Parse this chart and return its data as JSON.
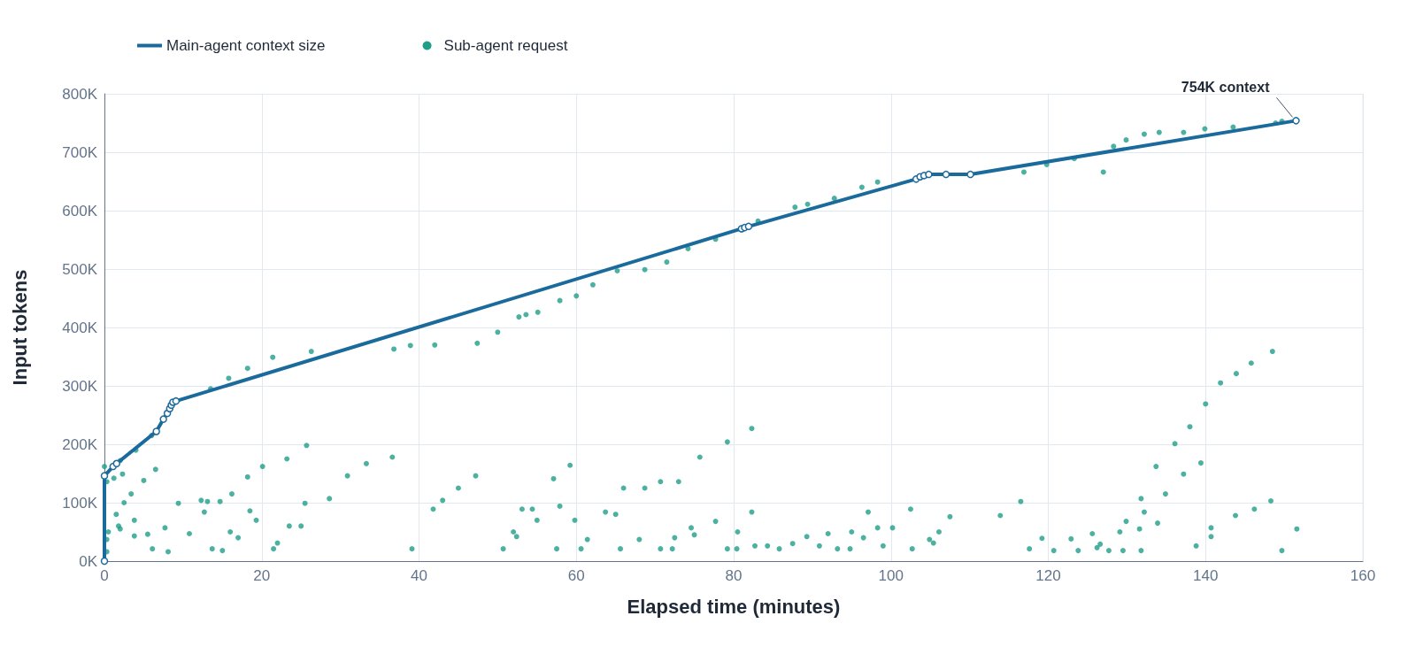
{
  "chart_data": {
    "type": "line",
    "xlabel": "Elapsed time (minutes)",
    "ylabel": "Input tokens",
    "xlim": [
      0,
      160
    ],
    "xticks": [
      0,
      20,
      40,
      60,
      80,
      100,
      120,
      140,
      160
    ],
    "ylim": [
      0,
      800000
    ],
    "yticks": [
      {
        "value": 0,
        "label": "0K"
      },
      {
        "value": 100000,
        "label": "100K"
      },
      {
        "value": 200000,
        "label": "200K"
      },
      {
        "value": 300000,
        "label": "300K"
      },
      {
        "value": 400000,
        "label": "400K"
      },
      {
        "value": 500000,
        "label": "500K"
      },
      {
        "value": 600000,
        "label": "600K"
      },
      {
        "value": 700000,
        "label": "700K"
      },
      {
        "value": 800000,
        "label": "800K"
      }
    ],
    "grid": true,
    "legend": "top left",
    "marker": "circle",
    "line_style": "solid",
    "annotations": [
      {
        "text": "754K context",
        "x": 151.5,
        "y": 754000
      }
    ],
    "series": [
      {
        "name": "Main-agent context size",
        "color": "#1b6a9c",
        "x": [
          0,
          0,
          1.1,
          1.55,
          6.6,
          7.5,
          8.0,
          8.3,
          8.5,
          8.7,
          9.1,
          81.0,
          81.4,
          81.9,
          103.2,
          103.7,
          104.2,
          104.8,
          107.0,
          110.1,
          151.5
        ],
        "values": [
          0,
          146000,
          162000,
          167000,
          222000,
          243000,
          253000,
          261000,
          267000,
          272000,
          274000,
          569000,
          571000,
          573000,
          654000,
          658000,
          660000,
          662000,
          662000,
          662000,
          754000
        ]
      },
      {
        "name": "Sub-agent request",
        "type": "scatter",
        "color": "#1f9e89",
        "x": [
          0,
          2,
          4,
          6,
          13.5,
          15.8,
          18.2,
          21.4,
          26.3,
          36.8,
          38.9,
          42,
          47.4,
          50,
          52.7,
          53.6,
          55.1,
          57.9,
          60,
          62.1,
          65.2,
          68.7,
          71.5,
          74.2,
          77.7,
          83.1,
          87.8,
          89.4,
          92.8,
          96.3,
          98.3,
          116.9,
          119.8,
          123.3,
          127,
          128.3,
          129.9,
          132.2,
          134.1,
          137.2,
          139.9,
          143.5,
          148.9,
          149.7,
          0.3,
          1.2,
          2.3,
          0.3,
          1.8,
          3.4,
          5,
          6.5,
          0.3,
          2,
          3.8,
          0.5,
          1.5,
          2.5,
          3.8,
          5.5,
          6.1,
          7.7,
          9.4,
          8.1,
          10.8,
          12.7,
          12.3,
          13.1,
          14.7,
          16.2,
          18.2,
          20.1,
          23.2,
          25.7,
          13.7,
          16,
          18.5,
          15,
          17,
          19.3,
          21.5,
          23.5,
          25.5,
          22,
          25,
          28.6,
          30.9,
          33.3,
          36.6,
          39.1,
          41.8,
          43,
          45,
          47.2,
          50.7,
          52,
          53.1,
          54.4,
          57.1,
          59.2,
          52.4,
          55,
          57.9,
          57.5,
          59.8,
          60.6,
          63.7,
          66,
          61.4,
          65,
          68.7,
          65.6,
          68,
          70.7,
          72.5,
          74.6,
          73,
          75.7,
          79.2,
          82.3,
          70.7,
          72.2,
          75,
          77.7,
          79.2,
          80.5,
          82.3,
          80.4,
          82.7,
          84.3,
          85.8,
          87.5,
          89.3,
          90.9,
          92,
          93.2,
          95,
          97.1,
          94.8,
          96.5,
          98.3,
          99,
          100.2,
          102.5,
          102.7,
          104.9,
          106.1,
          105.4,
          107.5,
          113.9,
          116.5,
          117.6,
          119.2,
          120.7,
          122.9,
          123.8,
          125.6,
          126.2,
          126.6,
          127.7,
          129.1,
          129.9,
          131.8,
          133.7,
          136.1,
          138,
          140,
          141.9,
          143.9,
          145.8,
          148.5,
          129.5,
          132.2,
          134.9,
          137.2,
          139.4,
          131.6,
          131.8,
          133.9,
          138.8,
          140.7,
          140.7,
          143.8,
          146.2,
          148.3,
          149.7,
          151.6
        ],
        "values": [
          162000,
          172000,
          190000,
          215000,
          295000,
          313000,
          330000,
          349000,
          359000,
          363000,
          369000,
          370000,
          373000,
          392000,
          418000,
          422000,
          426000,
          446000,
          454000,
          473000,
          497000,
          499000,
          512000,
          535000,
          551000,
          582000,
          606000,
          611000,
          621000,
          640000,
          649000,
          666000,
          679000,
          689000,
          666000,
          710000,
          721000,
          731000,
          734000,
          734000,
          740000,
          743000,
          750000,
          753000,
          136000,
          142000,
          149000,
          16000,
          60000,
          115000,
          138000,
          157000,
          37000,
          55000,
          70000,
          50000,
          80000,
          100000,
          43000,
          46000,
          21000,
          57000,
          99000,
          16000,
          47000,
          84000,
          104000,
          102000,
          102000,
          115000,
          144000,
          162000,
          175000,
          198000,
          21000,
          50000,
          86000,
          18000,
          40000,
          70000,
          21000,
          60000,
          99000,
          31000,
          60000,
          107000,
          146000,
          167000,
          178000,
          21000,
          89000,
          104000,
          125000,
          146000,
          21000,
          50000,
          89000,
          89000,
          141000,
          164000,
          42000,
          70000,
          94000,
          21000,
          70000,
          21000,
          84000,
          125000,
          37000,
          80000,
          125000,
          21000,
          37000,
          21000,
          40000,
          57000,
          136000,
          178000,
          204000,
          227000,
          136000,
          21000,
          45000,
          68000,
          21000,
          50000,
          84000,
          21000,
          26000,
          26000,
          21000,
          30000,
          42000,
          26000,
          47000,
          21000,
          50000,
          84000,
          21000,
          40000,
          57000,
          26000,
          57000,
          89000,
          21000,
          37000,
          50000,
          31000,
          76000,
          78000,
          102000,
          21000,
          39000,
          18000,
          38000,
          18000,
          47000,
          23000,
          29000,
          18000,
          50000,
          68000,
          107000,
          162000,
          201000,
          230000,
          269000,
          305000,
          321000,
          339000,
          359000,
          18000,
          84000,
          115000,
          149000,
          168000,
          55000,
          18000,
          65000,
          26000,
          42000,
          57000,
          78000,
          89000,
          103000,
          18000,
          55000
        ]
      }
    ]
  }
}
